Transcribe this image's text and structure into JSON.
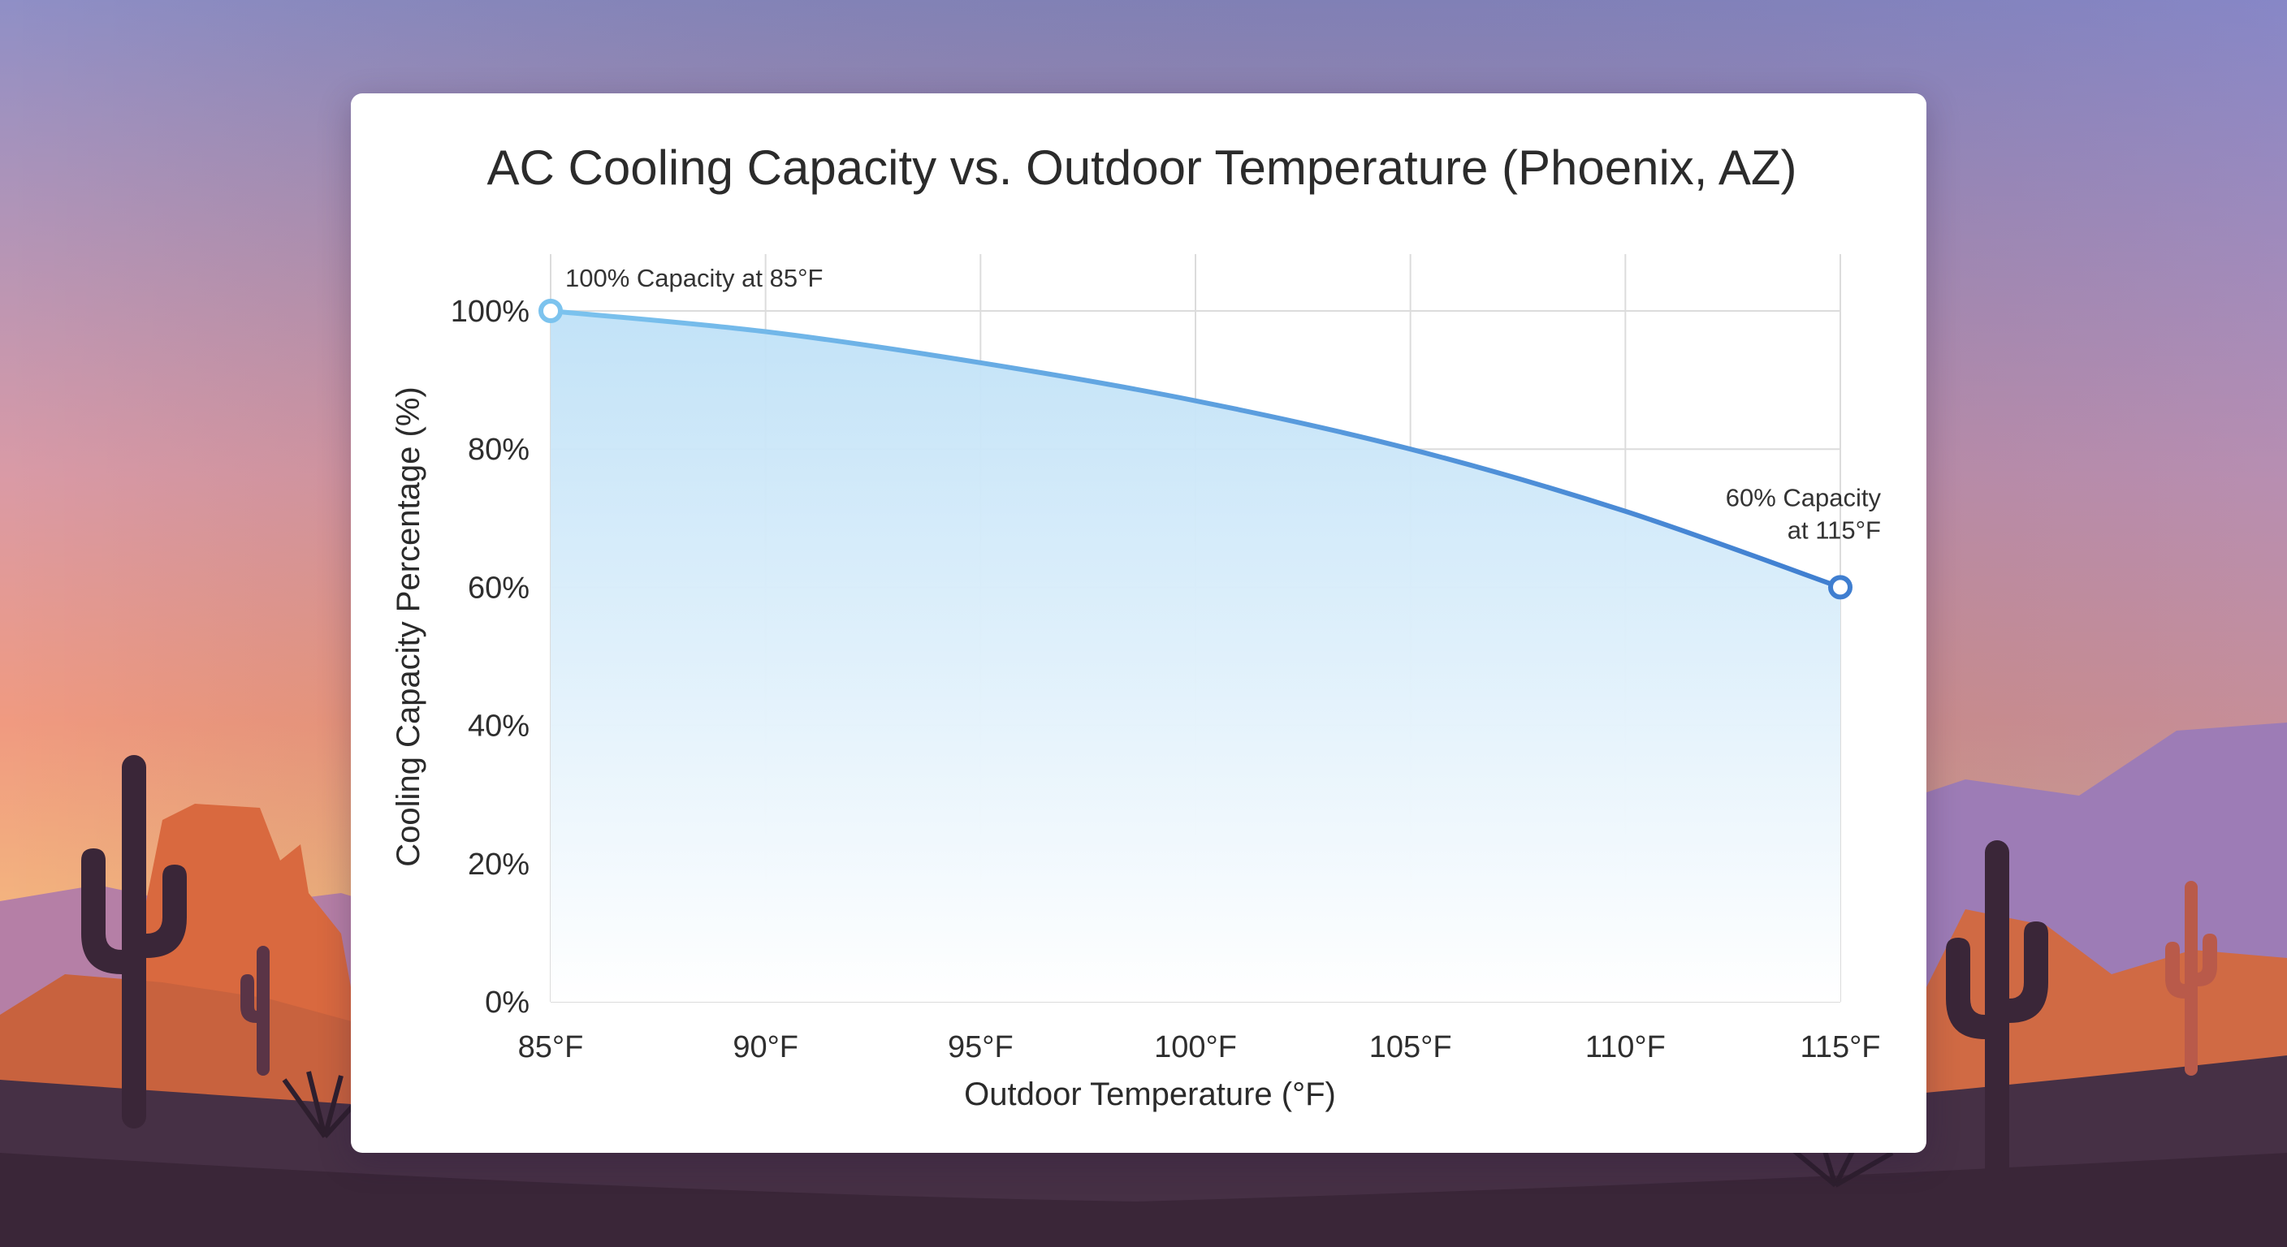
{
  "colors": {
    "line_start": "#7cc3ee",
    "line_end": "#3f7ed0",
    "fill_top": "#bfe1f7",
    "fill_bottom": "#ffffff",
    "sky_top": "#8f8fc6",
    "sky_mid": "#e2928a",
    "sky_low": "#f5c07e",
    "mesa": "#d9693f",
    "mountain": "#a37bb2",
    "ground": "#463045",
    "cactus": "#3a2638"
  },
  "chart_data": {
    "type": "area",
    "title": "AC Cooling Capacity vs. Outdoor Temperature (Phoenix, AZ)",
    "xlabel": "Outdoor Temperature (°F)",
    "ylabel": "Cooling Capacity Percentage (%)",
    "x_ticks": [
      {
        "value": 85,
        "label": "85°F"
      },
      {
        "value": 90,
        "label": "90°F"
      },
      {
        "value": 95,
        "label": "95°F"
      },
      {
        "value": 100,
        "label": "100°F"
      },
      {
        "value": 105,
        "label": "105°F"
      },
      {
        "value": 110,
        "label": "110°F"
      },
      {
        "value": 115,
        "label": "115°F"
      }
    ],
    "y_ticks": [
      {
        "value": 0,
        "label": "0%"
      },
      {
        "value": 20,
        "label": "20%"
      },
      {
        "value": 40,
        "label": "40%"
      },
      {
        "value": 60,
        "label": "60%"
      },
      {
        "value": 80,
        "label": "80%"
      },
      {
        "value": 100,
        "label": "100%"
      }
    ],
    "xlim": [
      85,
      115
    ],
    "ylim": [
      0,
      100
    ],
    "grid": true,
    "series": [
      {
        "x": [
          85,
          90,
          95,
          100,
          105,
          110,
          115
        ],
        "y": [
          100,
          97,
          92.5,
          87,
          80,
          71,
          60
        ]
      }
    ],
    "markers": [
      {
        "x": 85,
        "y": 100
      },
      {
        "x": 115,
        "y": 60
      }
    ],
    "annotations": [
      {
        "x": 85,
        "y": 100,
        "lines": [
          "100% Capacity at 85°F"
        ]
      },
      {
        "x": 115,
        "y": 60,
        "lines": [
          "60% Capacity",
          "at 115°F"
        ]
      }
    ]
  }
}
